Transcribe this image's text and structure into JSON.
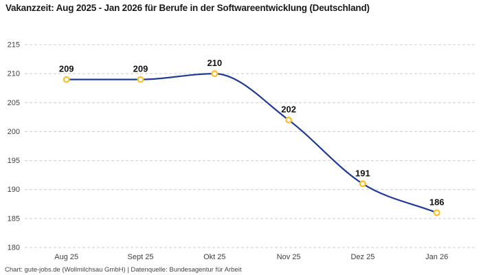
{
  "title": "Vakanzzeit: Aug 2025 - Jan 2026 für Berufe in der Softwareentwicklung (Deutschland)",
  "footer": "Chart: gute-jobs.de (Wollmilchsau GmbH) | Datenquelle: Bundesagentur für Arbeit",
  "colors": {
    "background": "#ffffff",
    "line": "#1f3a97",
    "marker_ring": "#fbc12d",
    "marker_fill": "#ffffff",
    "grid": "#cccccc",
    "tick_text": "#3f3f3f",
    "data_label": "#111111",
    "title_text": "#1a1a1a",
    "footer_text": "#444444"
  },
  "chart_data": {
    "type": "line",
    "title": "Vakanzzeit: Aug 2025 - Jan 2026 für Berufe in der Softwareentwicklung (Deutschland)",
    "categories": [
      "Aug 25",
      "Sept 25",
      "Okt 25",
      "Nov 25",
      "Dez 25",
      "Jan 26"
    ],
    "values": [
      209,
      209,
      210,
      202,
      191,
      186
    ],
    "xlabel": "",
    "ylabel": "",
    "ylim": [
      180,
      215
    ],
    "ytick_step": 5,
    "yticks": [
      180,
      185,
      190,
      195,
      200,
      205,
      210,
      215
    ],
    "grid": "horizontal-dashed",
    "legend": "none",
    "curve": "monotone",
    "markers": "open-circle",
    "data_labels": true,
    "source": "Chart: gute-jobs.de (Wollmilchsau GmbH) | Datenquelle: Bundesagentur für Arbeit"
  }
}
